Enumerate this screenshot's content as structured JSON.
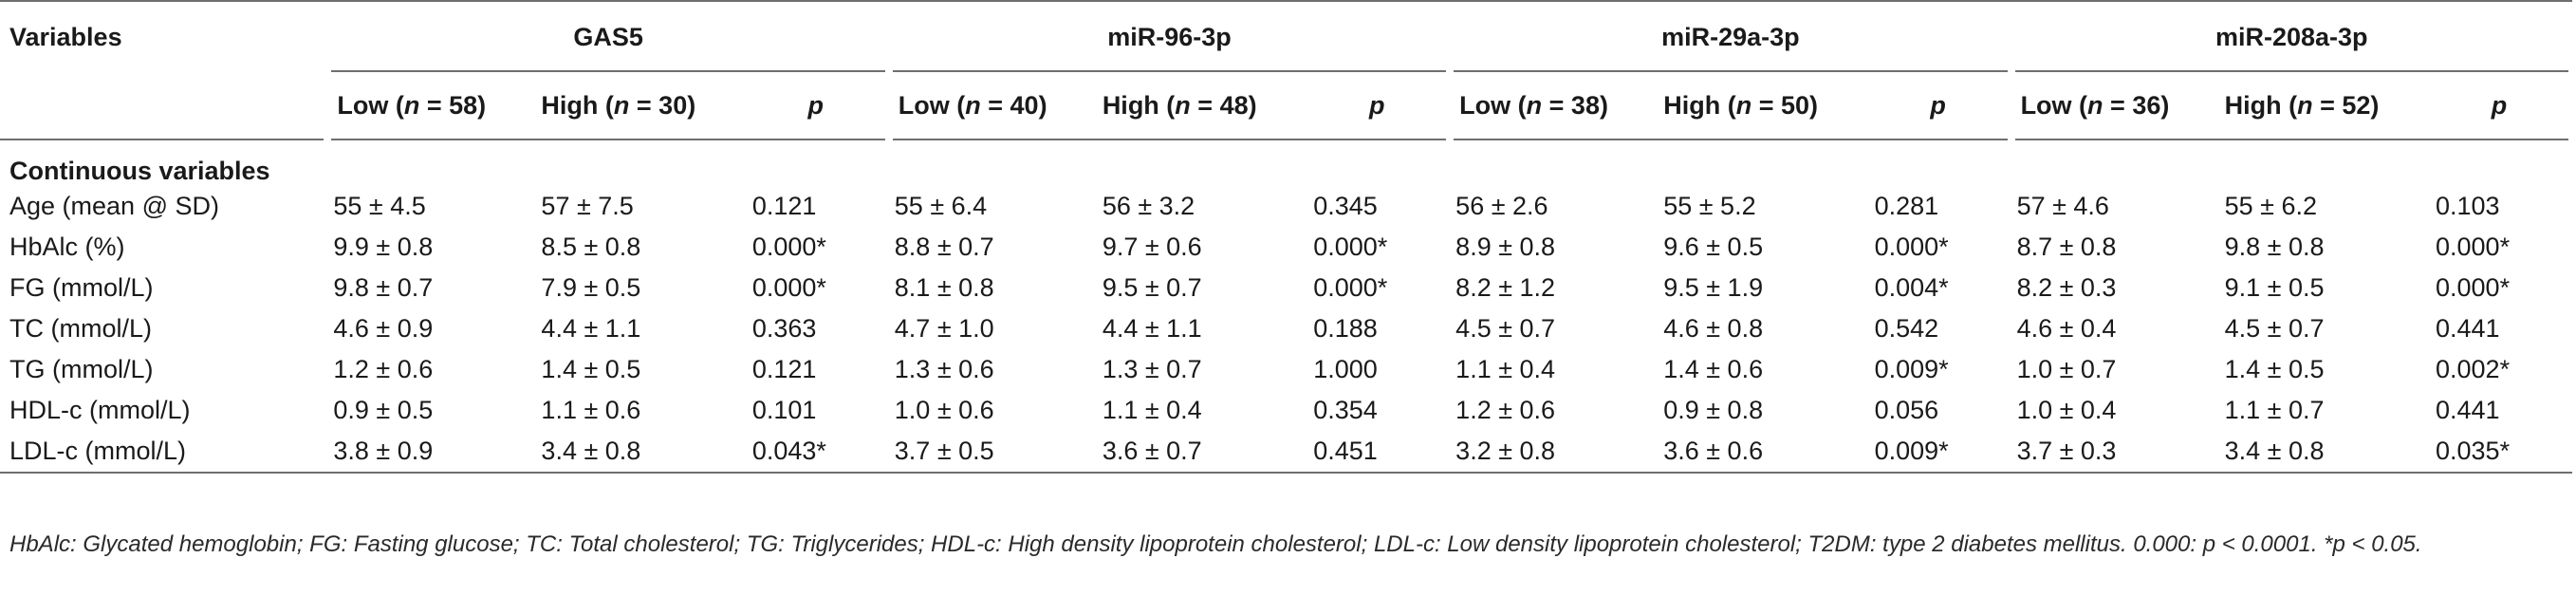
{
  "header": {
    "variables_label": "Variables",
    "groups": [
      "GAS5",
      "miR-96-3p",
      "miR-29a-3p",
      "miR-208a-3p"
    ],
    "subheaders": [
      {
        "label": "Low (",
        "n": "n",
        "rest": " = 58)"
      },
      {
        "label": "High (",
        "n": "n",
        "rest": " = 30)"
      },
      {
        "label": "Low (",
        "n": "n",
        "rest": " = 40)"
      },
      {
        "label": "High (",
        "n": "n",
        "rest": " = 48)"
      },
      {
        "label": "Low (",
        "n": "n",
        "rest": " = 38)"
      },
      {
        "label": "High (",
        "n": "n",
        "rest": " = 50)"
      },
      {
        "label": "Low (",
        "n": "n",
        "rest": " = 36)"
      },
      {
        "label": "High (",
        "n": "n",
        "rest": " = 52)"
      }
    ],
    "p_label": "p"
  },
  "section_title": "Continuous variables",
  "rows": [
    {
      "label": "Age (mean @ SD)",
      "cells": [
        "55 ± 4.5",
        "57 ± 7.5",
        "0.121",
        "55 ± 6.4",
        "56 ± 3.2",
        "0.345",
        "56 ± 2.6",
        "55 ± 5.2",
        "0.281",
        "57 ± 4.6",
        "55 ± 6.2",
        "0.103"
      ]
    },
    {
      "label": "HbAlc (%)",
      "cells": [
        "9.9 ± 0.8",
        "8.5 ± 0.8",
        "0.000*",
        "8.8 ± 0.7",
        "9.7 ± 0.6",
        "0.000*",
        "8.9 ± 0.8",
        "9.6 ± 0.5",
        "0.000*",
        "8.7 ± 0.8",
        "9.8 ± 0.8",
        "0.000*"
      ]
    },
    {
      "label": "FG (mmol/L)",
      "cells": [
        "9.8 ± 0.7",
        "7.9 ± 0.5",
        "0.000*",
        "8.1 ± 0.8",
        "9.5 ± 0.7",
        "0.000*",
        "8.2 ± 1.2",
        "9.5 ± 1.9",
        "0.004*",
        "8.2 ± 0.3",
        "9.1 ± 0.5",
        "0.000*"
      ]
    },
    {
      "label": "TC (mmol/L)",
      "cells": [
        "4.6 ± 0.9",
        "4.4 ± 1.1",
        "0.363",
        "4.7 ± 1.0",
        "4.4 ± 1.1",
        "0.188",
        "4.5 ± 0.7",
        "4.6 ± 0.8",
        "0.542",
        "4.6 ± 0.4",
        "4.5 ± 0.7",
        "0.441"
      ]
    },
    {
      "label": "TG (mmol/L)",
      "cells": [
        "1.2 ± 0.6",
        "1.4 ± 0.5",
        "0.121",
        "1.3 ± 0.6",
        "1.3 ± 0.7",
        "1.000",
        "1.1 ± 0.4",
        "1.4 ± 0.6",
        "0.009*",
        "1.0 ± 0.7",
        "1.4 ± 0.5",
        "0.002*"
      ]
    },
    {
      "label": "HDL-c (mmol/L)",
      "cells": [
        "0.9 ± 0.5",
        "1.1 ± 0.6",
        "0.101",
        "1.0 ± 0.6",
        "1.1 ± 0.4",
        "0.354",
        "1.2 ± 0.6",
        "0.9 ± 0.8",
        "0.056",
        "1.0 ± 0.4",
        "1.1 ± 0.7",
        "0.441"
      ]
    },
    {
      "label": "LDL-c (mmol/L)",
      "cells": [
        "3.8 ± 0.9",
        "3.4 ± 0.8",
        "0.043*",
        "3.7 ± 0.5",
        "3.6 ± 0.7",
        "0.451",
        "3.2 ± 0.8",
        "3.6 ± 0.6",
        "0.009*",
        "3.7 ± 0.3",
        "3.4 ± 0.8",
        "0.035*"
      ]
    }
  ],
  "footnote": "HbAlc: Glycated hemoglobin; FG: Fasting glucose; TC: Total cholesterol; TG: Triglycerides; HDL-c: High density lipoprotein cholesterol; LDL-c: Low density lipoprotein cholesterol; T2DM: type 2 diabetes mellitus. 0.000: p < 0.0001. *p < 0.05."
}
